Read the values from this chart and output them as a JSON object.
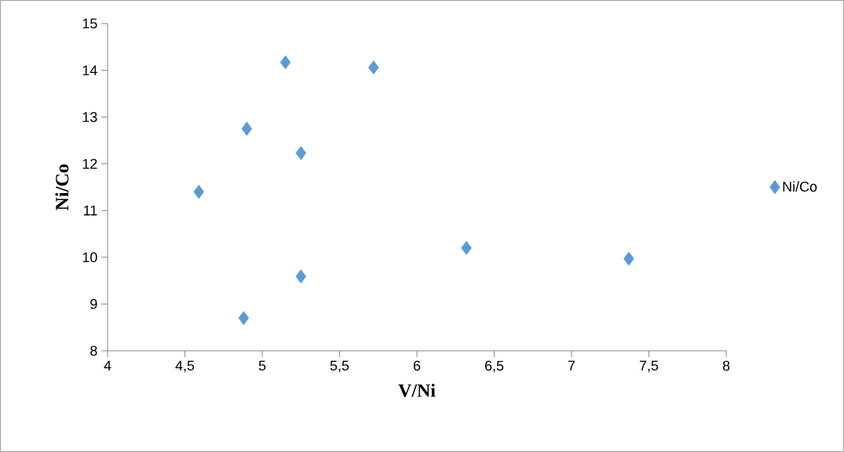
{
  "chart_data": {
    "type": "scatter",
    "xlabel": "V/Ni",
    "ylabel": "Ni/Co",
    "x": [
      5.15,
      5.72,
      4.9,
      5.25,
      4.59,
      5.25,
      4.88,
      6.32,
      7.37
    ],
    "series": [
      {
        "name": "Ni/Co",
        "color": "#5b9bd5",
        "values": [
          14.17,
          14.06,
          12.75,
          12.23,
          11.4,
          9.59,
          8.7,
          10.2,
          9.97
        ]
      }
    ],
    "xlim": [
      4,
      8
    ],
    "xticks": [
      4,
      {
        "value": 4.5,
        "label": "4,5"
      },
      5,
      {
        "value": 5.5,
        "label": "5,5"
      },
      6,
      {
        "value": 6.5,
        "label": "6,5"
      },
      7,
      {
        "value": 7.5,
        "label": "7,5"
      },
      8
    ],
    "ylim": [
      8,
      15
    ],
    "yticks": [
      8,
      9,
      10,
      11,
      12,
      13,
      14,
      15
    ],
    "marker": "diamond",
    "legend": "right"
  }
}
